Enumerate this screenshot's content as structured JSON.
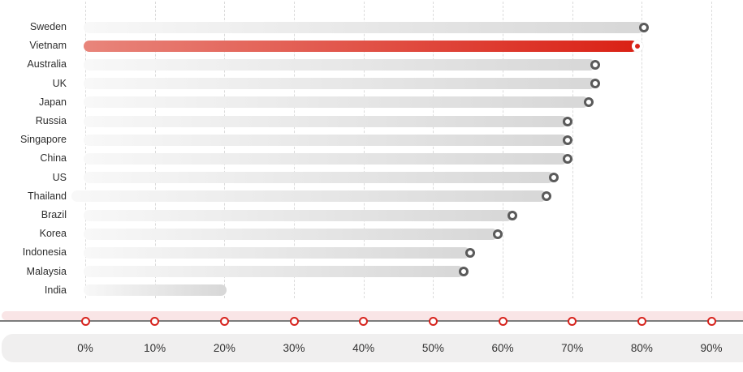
{
  "chart_data": {
    "type": "bar",
    "orientation": "horizontal",
    "title": "",
    "xlabel": "",
    "ylabel": "",
    "categories": [
      "Sweden",
      "Vietnam",
      "Australia",
      "UK",
      "Japan",
      "Russia",
      "Singapore",
      "China",
      "US",
      "Thailand",
      "Brazil",
      "Korea",
      "Indonesia",
      "Malaysia",
      "India"
    ],
    "values": [
      80,
      79,
      73,
      73,
      72,
      69,
      69,
      69,
      67,
      66,
      61,
      59,
      55,
      54,
      20
    ],
    "unit": "%",
    "highlight_category": "Vietnam",
    "highlight_index": 1,
    "no_marker_categories": [
      "India"
    ],
    "bar_extends_left_categories": [
      "Thailand"
    ],
    "x_ticks": [
      "0%",
      "10%",
      "20%",
      "30%",
      "40%",
      "50%",
      "60%",
      "70%",
      "80%",
      "90%"
    ],
    "x_tick_values": [
      0,
      10,
      20,
      30,
      40,
      50,
      60,
      70,
      80,
      90
    ],
    "xlim": [
      0,
      94
    ],
    "grid": "vertical-dashed",
    "legend": "none"
  },
  "colors": {
    "background": "#ffffff",
    "bar_gradient_start": "#f8f8f8",
    "bar_gradient_end": "#d7d7d7",
    "highlight_gradient_start": "#e8857b",
    "highlight_gradient_end": "#da2115",
    "marker_ring": "#5a5a5a",
    "highlight_marker_fill": "#d8231a",
    "axis_tick_ring": "#d7231d",
    "axis_pink_band": "#f9e5e6",
    "axis_line": "#7c7c7c",
    "label_band": "#f0efef",
    "row_label_text": "#2e2e2e",
    "axis_label_text": "#333333",
    "gridline": "#dbdbdb"
  }
}
